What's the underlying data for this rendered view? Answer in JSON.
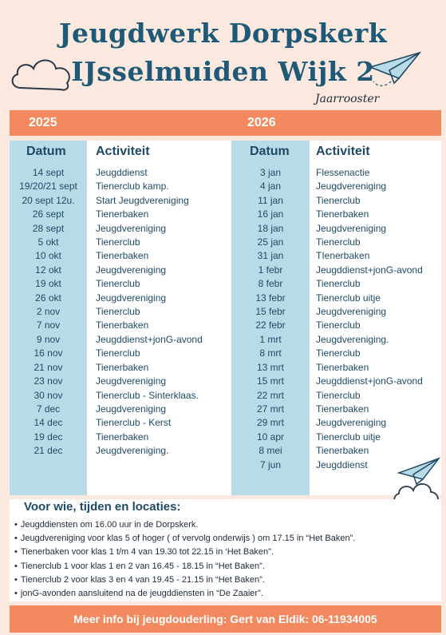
{
  "title": {
    "line1": "Jeugdwerk  Dorpskerk",
    "line2": "IJsselmuiden Wijk 2",
    "subtitle": "Jaarrooster"
  },
  "years": {
    "left": "2025",
    "right": "2026"
  },
  "headers": {
    "date": "Datum",
    "activity": "Activiteit"
  },
  "schedule_2025": {
    "dates": [
      "14 sept",
      "19/20/21 sept",
      "20 sept 12u.",
      "26 sept",
      "28 sept",
      "5 okt",
      "10 okt",
      "12 okt",
      "19 okt",
      "26 okt",
      "2 nov",
      "7 nov",
      "9 nov",
      "16 nov",
      "21 nov",
      "23 nov",
      "30 nov",
      "7 dec",
      "14 dec",
      "19 dec",
      "21 dec"
    ],
    "activities": [
      "Jeugddienst",
      "Tienerclub kamp.",
      "Start Jeugdvereniging",
      "Tienerbaken",
      "Jeugdvereniging",
      "Tienerclub",
      "Tienerbaken",
      "Jeugdvereniging",
      "Tienerclub",
      "Jeugdvereniging",
      "Tienerclub",
      "Tienerbaken",
      "Jeugddienst+jonG-avond",
      "Tienerclub",
      "Tienerbaken",
      "Jeugdvereniging",
      "Tienerclub - Sinterklaas.",
      "Jeugdvereniging",
      "Tienerclub - Kerst",
      "Tienerbaken",
      "Jeugdvereniging."
    ]
  },
  "schedule_2026": {
    "dates": [
      "3 jan",
      "4 jan",
      "11 jan",
      "16 jan",
      "18 jan",
      "25 jan",
      "31 jan",
      "1 febr",
      "8 febr",
      "13 febr",
      "15 febr",
      "22 febr",
      "1 mrt",
      "8 mrt",
      "13 mrt",
      "15 mrt",
      "22 mrt",
      "27 mrt",
      "29 mrt",
      "10 apr",
      "8 mei",
      "7 jun"
    ],
    "activities": [
      "Flessenactie",
      "Jeugdvereniging",
      "Tienerclub",
      "Tienerbaken",
      "Jeugdvereniging",
      "Tienerclub",
      "TIenerbaken",
      "Jeugddienst+jonG-avond",
      "Tienerclub",
      "Tienerclub uitje",
      "Jeugdvereniging",
      "Tienerclub",
      "Jeugdvereniging.",
      "Tienerclub",
      "Tienerbaken",
      "Jeugddienst+jonG-avond",
      "Tienerclub",
      "Tienerbaken",
      "Jeugdvereniging",
      "Tienerclub uitje",
      "Tienerbaken",
      "Jeugddienst"
    ]
  },
  "info": {
    "heading": "Voor wie, tijden en locaties:",
    "items": [
      "Jeugddiensten om  16.00 uur in de Dorpskerk.",
      "Jeugdvereniging voor klas 5 of hoger ( of vervolg onderwijs ) om 17.15 in “Het Baken”.",
      "Tienerbaken voor klas 1 t/m 4 van 19.30 tot 22.15 in ‘Het Baken\".",
      "Tienerclub 1 voor klas 1 en 2 van 16.45 - 18.15 in “Het Baken”.",
      "Tienerclub 2 voor klas 3 en 4 van 19.45 - 21.15 in “Het Baken”.",
      "jonG-avonden aansluitend na de jeugddiensten in “De Zaaier”."
    ]
  },
  "footer": {
    "text": "Meer info bij jeugdouderling: Gert van Eldik: 06-11934005"
  },
  "icons": {
    "cloud": "cloud-icon",
    "paper_plane": "paper-plane-icon"
  },
  "colors": {
    "background": "#fbe9df",
    "accent_orange": "#f2895f",
    "date_column_blue": "#b9dbe7",
    "title_blue": "#1e5a78"
  }
}
